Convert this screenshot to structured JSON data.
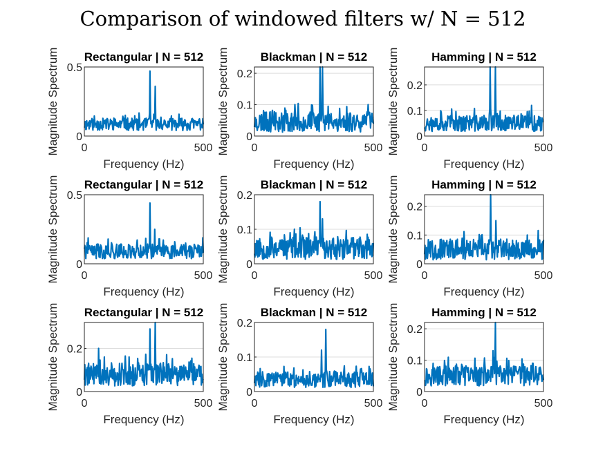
{
  "figure": {
    "title": "Comparison of windowed filters w/ N = 512"
  },
  "chart_data": [
    {
      "type": "line",
      "title": "Rectangular | N = 512",
      "xlabel": "Frequency (Hz)",
      "ylabel": "Magnitude Spectrum",
      "xlim": [
        0,
        500
      ],
      "ylim": [
        0,
        0.5
      ],
      "yticks": [
        0,
        0.5
      ],
      "xticks": [
        0,
        500
      ],
      "grid": true,
      "color": "#0072BD",
      "series": [
        {
          "baseline": 0.085,
          "noise": 0.025,
          "seed": 11,
          "peaks": [
            [
              276,
              0.47
            ],
            [
              298,
              0.36
            ],
            [
              172,
              0.15
            ]
          ]
        }
      ]
    },
    {
      "type": "line",
      "title": "Blackman | N = 512",
      "xlabel": "Frequency (Hz)",
      "ylabel": "Magnitude Spectrum",
      "xlim": [
        0,
        500
      ],
      "ylim": [
        0,
        0.22
      ],
      "yticks": [
        0,
        0.1,
        0.2
      ],
      "xticks": [
        0,
        500
      ],
      "grid": true,
      "color": "#0072BD",
      "series": [
        {
          "baseline": 0.045,
          "noise": 0.018,
          "seed": 23,
          "peaks": [
            [
              276,
              0.26
            ],
            [
              286,
              0.26
            ],
            [
              170,
              0.1
            ],
            [
              478,
              0.1
            ]
          ]
        }
      ]
    },
    {
      "type": "line",
      "title": "Hamming | N = 512",
      "xlabel": "Frequency (Hz)",
      "ylabel": "Magnitude Spectrum",
      "xlim": [
        0,
        500
      ],
      "ylim": [
        0,
        0.27
      ],
      "yticks": [
        0,
        0.1,
        0.2
      ],
      "xticks": [
        0,
        500
      ],
      "grid": true,
      "color": "#0072BD",
      "series": [
        {
          "baseline": 0.05,
          "noise": 0.018,
          "seed": 37,
          "peaks": [
            [
              276,
              0.3
            ],
            [
              298,
              0.27
            ],
            [
              450,
              0.12
            ]
          ]
        }
      ]
    },
    {
      "type": "line",
      "title": "Rectangular | N = 512",
      "xlabel": "Frequency (Hz)",
      "ylabel": "Magnitude Spectrum",
      "xlim": [
        0,
        500
      ],
      "ylim": [
        0,
        0.5
      ],
      "yticks": [
        0,
        0.5
      ],
      "xticks": [
        0,
        500
      ],
      "grid": true,
      "color": "#0072BD",
      "series": [
        {
          "baseline": 0.09,
          "noise": 0.03,
          "seed": 41,
          "peaks": [
            [
              276,
              0.44
            ],
            [
              296,
              0.25
            ],
            [
              315,
              0.18
            ]
          ]
        }
      ]
    },
    {
      "type": "line",
      "title": "Blackman | N = 512",
      "xlabel": "Frequency (Hz)",
      "ylabel": "Magnitude Spectrum",
      "xlim": [
        0,
        500
      ],
      "ylim": [
        0,
        0.2
      ],
      "yticks": [
        0,
        0.1,
        0.2
      ],
      "xticks": [
        0,
        500
      ],
      "grid": true,
      "color": "#0072BD",
      "series": [
        {
          "baseline": 0.045,
          "noise": 0.018,
          "seed": 53,
          "peaks": [
            [
              276,
              0.18
            ],
            [
              286,
              0.13
            ],
            [
              150,
              0.09
            ]
          ]
        }
      ]
    },
    {
      "type": "line",
      "title": "Hamming | N = 512",
      "xlabel": "Frequency (Hz)",
      "ylabel": "Magnitude Spectrum",
      "xlim": [
        0,
        500
      ],
      "ylim": [
        0,
        0.24
      ],
      "yticks": [
        0,
        0.1,
        0.2
      ],
      "xticks": [
        0,
        500
      ],
      "grid": true,
      "color": "#0072BD",
      "series": [
        {
          "baseline": 0.05,
          "noise": 0.02,
          "seed": 67,
          "peaks": [
            [
              278,
              0.24
            ],
            [
              300,
              0.15
            ],
            [
              432,
              0.1
            ]
          ]
        }
      ]
    },
    {
      "type": "line",
      "title": "Rectangular | N = 512",
      "xlabel": "Frequency (Hz)",
      "ylabel": "Magnitude Spectrum",
      "xlim": [
        0,
        500
      ],
      "ylim": [
        0,
        0.32
      ],
      "yticks": [
        0,
        0.2
      ],
      "xticks": [
        0,
        500
      ],
      "grid": true,
      "color": "#0072BD",
      "series": [
        {
          "baseline": 0.08,
          "noise": 0.03,
          "seed": 79,
          "peaks": [
            [
              276,
              0.29
            ],
            [
              298,
              0.32
            ],
            [
              60,
              0.2
            ]
          ]
        }
      ]
    },
    {
      "type": "line",
      "title": "Blackman | N = 512",
      "xlabel": "Frequency (Hz)",
      "ylabel": "Magnitude Spectrum",
      "xlim": [
        0,
        500
      ],
      "ylim": [
        0,
        0.2
      ],
      "yticks": [
        0,
        0.1,
        0.2
      ],
      "xticks": [
        0,
        500
      ],
      "grid": true,
      "color": "#0072BD",
      "series": [
        {
          "baseline": 0.035,
          "noise": 0.013,
          "seed": 83,
          "peaks": [
            [
              300,
              0.18
            ],
            [
              282,
              0.12
            ]
          ]
        }
      ]
    },
    {
      "type": "line",
      "title": "Hamming | N = 512",
      "xlabel": "Frequency (Hz)",
      "ylabel": "Magnitude Spectrum",
      "xlim": [
        0,
        500
      ],
      "ylim": [
        0,
        0.22
      ],
      "yticks": [
        0,
        0.1,
        0.2
      ],
      "xticks": [
        0,
        500
      ],
      "grid": true,
      "color": "#0072BD",
      "series": [
        {
          "baseline": 0.05,
          "noise": 0.018,
          "seed": 97,
          "peaks": [
            [
              298,
              0.22
            ],
            [
              288,
              0.13
            ],
            [
              455,
              0.09
            ]
          ]
        }
      ]
    }
  ]
}
